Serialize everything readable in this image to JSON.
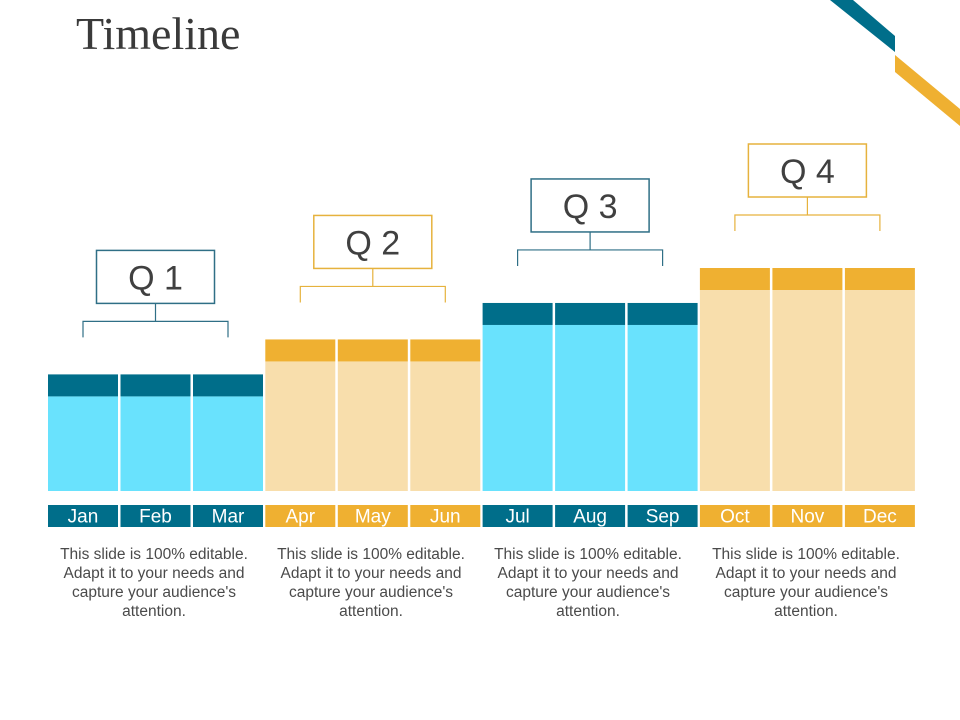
{
  "slide": {
    "title": "Timeline"
  },
  "colors": {
    "teal": "#006e8a",
    "light_blue": "#69e2fd",
    "orange": "#efb031",
    "light_orange": "#f8deac"
  },
  "quarters": [
    {
      "label": "Q 1",
      "theme": "blue",
      "level": 0.3,
      "months": [
        "Jan",
        "Feb",
        "Mar"
      ],
      "description": "This slide is 100% editable. Adapt it to your needs and capture your audience's attention."
    },
    {
      "label": "Q 2",
      "theme": "orange",
      "level": 0.53,
      "months": [
        "Apr",
        "May",
        "Jun"
      ],
      "description": "This slide is 100% editable. Adapt it to your needs and capture your audience's attention."
    },
    {
      "label": "Q 3",
      "theme": "blue",
      "level": 0.77,
      "months": [
        "Jul",
        "Aug",
        "Sep"
      ],
      "description": "This slide is 100% editable. Adapt it to your needs and capture your audience's attention."
    },
    {
      "label": "Q 4",
      "theme": "orange",
      "level": 1.0,
      "months": [
        "Oct",
        "Nov",
        "Dec"
      ],
      "description": "This slide is 100% editable. Adapt it to your needs and capture your audience's attention."
    }
  ]
}
